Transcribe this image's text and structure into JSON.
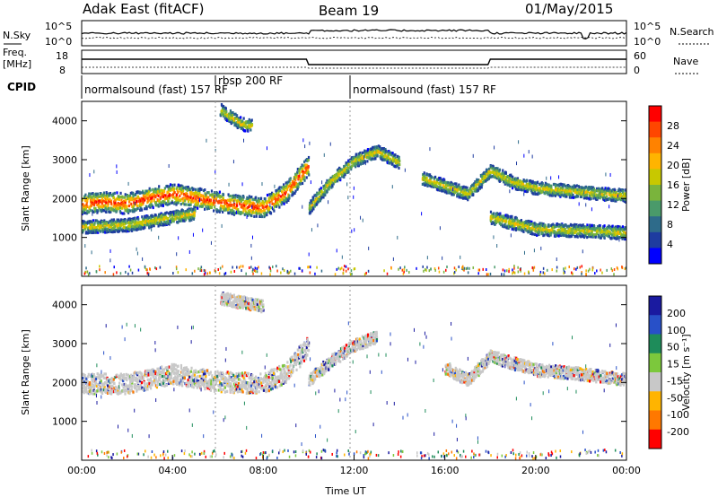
{
  "header": {
    "station": "Adak East (fitACF)",
    "beam": "Beam 19",
    "date": "01/May/2015"
  },
  "panels": {
    "nsky_label": "N.Sky",
    "nsearch_label": "N.Search",
    "freq_label_line1": "Freq.",
    "freq_label_line2": "[MHz]",
    "nave_label": "Nave",
    "cpid_label": "CPID",
    "nsky_ticks": [
      "10^5",
      "10^0"
    ],
    "nsearch_ticks": [
      "10^5",
      "10^0"
    ],
    "freq_ticks": [
      "18",
      "8"
    ],
    "nave_ticks": [
      "60",
      "0"
    ],
    "cpid_segments": [
      {
        "label": "normalsound (fast) 157 RF",
        "start": 0,
        "end": 6
      },
      {
        "label": "rbsp 200 RF",
        "start": 6,
        "end": 12
      },
      {
        "label": "normalsound (fast) 157 RF",
        "start": 12,
        "end": 24
      }
    ]
  },
  "chart_data": [
    {
      "type": "heatmap",
      "title": "",
      "xlabel": "",
      "ylabel": "Slant Range [km]",
      "xlim": [
        0,
        24
      ],
      "ylim": [
        0,
        4500
      ],
      "yticks": [
        1000,
        2000,
        3000,
        4000
      ],
      "colorbar_label": "Power [dB]",
      "colorbar_ticks": [
        28,
        24,
        20,
        16,
        12,
        8,
        4
      ],
      "colors": [
        "#0000ff",
        "#1e3ca0",
        "#2e6b8a",
        "#4a9a6a",
        "#7ab43c",
        "#c8c800",
        "#ffb400",
        "#ff8200",
        "#ff4600",
        "#ff0000"
      ],
      "features": [
        {
          "name": "main_band",
          "points": [
            [
              0,
              1900
            ],
            [
              1,
              1950
            ],
            [
              2,
              1900
            ],
            [
              3,
              2050
            ],
            [
              4,
              2150
            ],
            [
              5,
              2050
            ],
            [
              6,
              1950
            ],
            [
              7,
              1850
            ],
            [
              8,
              1800
            ],
            [
              9,
              2200
            ],
            [
              10,
              2900
            ]
          ]
        },
        {
          "name": "lower_band",
          "points": [
            [
              0,
              1300
            ],
            [
              2,
              1350
            ],
            [
              4,
              1550
            ],
            [
              5,
              1650
            ]
          ]
        },
        {
          "name": "upper_patch",
          "points": [
            [
              6.1,
              4300
            ],
            [
              6.5,
              4150
            ],
            [
              7,
              3950
            ],
            [
              7.5,
              3900
            ]
          ]
        },
        {
          "name": "rise_12",
          "points": [
            [
              10,
              1800
            ],
            [
              11,
              2500
            ],
            [
              12,
              3000
            ],
            [
              13,
              3250
            ],
            [
              14,
              2950
            ]
          ]
        },
        {
          "name": "afternoon_band",
          "points": [
            [
              15,
              2550
            ],
            [
              16,
              2350
            ],
            [
              17,
              2150
            ],
            [
              18,
              2750
            ],
            [
              19,
              2450
            ],
            [
              20,
              2300
            ],
            [
              21,
              2250
            ],
            [
              22,
              2200
            ],
            [
              24,
              2100
            ]
          ]
        },
        {
          "name": "afternoon_lower",
          "points": [
            [
              18,
              1550
            ],
            [
              20,
              1250
            ],
            [
              22,
              1200
            ],
            [
              24,
              1150
            ]
          ]
        }
      ]
    },
    {
      "type": "heatmap",
      "title": "",
      "xlabel": "Time UT",
      "ylabel": "Slant Range [km]",
      "xlim": [
        0,
        24
      ],
      "ylim": [
        0,
        4500
      ],
      "yticks": [
        1000,
        2000,
        3000,
        4000
      ],
      "xticks": [
        "00:00",
        "04:00",
        "08:00",
        "12:00",
        "16:00",
        "20:00",
        "00:00"
      ],
      "colorbar_label": "Velocity [m s⁻¹]",
      "colorbar_ticks": [
        200,
        100,
        50,
        15,
        -15,
        -50,
        -100,
        -200
      ],
      "colors": [
        "#1a1aa0",
        "#2850c8",
        "#1e8c5a",
        "#7cc83c",
        "#c8c8c8",
        "#ffb400",
        "#ff7800",
        "#ff0000"
      ],
      "features": [
        {
          "name": "main_band",
          "points": [
            [
              0,
              2000
            ],
            [
              2,
              2000
            ],
            [
              4,
              2250
            ],
            [
              6,
              2050
            ],
            [
              8,
              2000
            ],
            [
              9,
              2300
            ],
            [
              10,
              3000
            ]
          ]
        },
        {
          "name": "upper_patch",
          "points": [
            [
              6.1,
              4200
            ],
            [
              7,
              4100
            ],
            [
              8,
              4000
            ]
          ]
        },
        {
          "name": "rise_12",
          "points": [
            [
              10,
              2100
            ],
            [
              11,
              2600
            ],
            [
              12,
              3000
            ],
            [
              13,
              3200
            ]
          ]
        },
        {
          "name": "afternoon_band",
          "points": [
            [
              16,
              2400
            ],
            [
              17,
              2100
            ],
            [
              18,
              2700
            ],
            [
              20,
              2350
            ],
            [
              22,
              2250
            ],
            [
              24,
              2100
            ]
          ]
        }
      ]
    }
  ],
  "colors": {
    "axis": "#000000",
    "grey_scatter": "#bebebe"
  }
}
